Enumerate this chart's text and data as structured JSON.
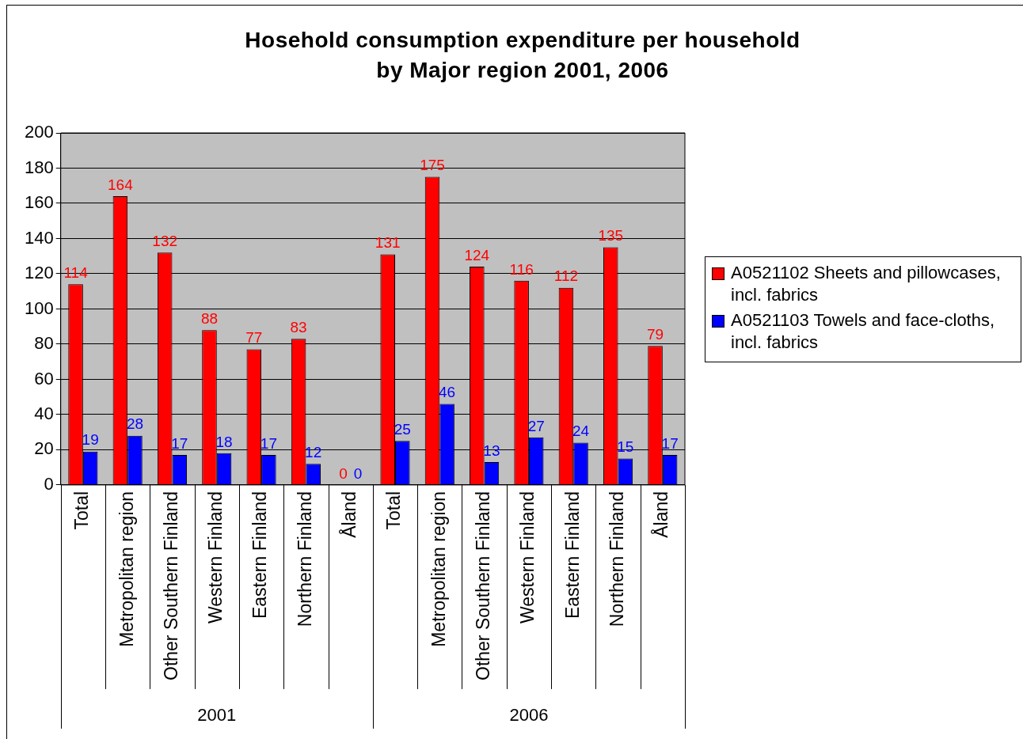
{
  "chart_data": {
    "type": "bar",
    "title": "Hosehold consumption expenditure per household by Major region 2001, 2006",
    "categories": [
      "Total",
      "Metropolitan region",
      "Other Southern Finland",
      "Western Finland",
      "Eastern Finland",
      "Northern Finland",
      "Åland",
      "Total",
      "Metropolitan region",
      "Other Southern Finland",
      "Western Finland",
      "Eastern Finland",
      "Northern Finland",
      "Åland"
    ],
    "series": [
      {
        "name": "A0521102  Sheets and pillowcases, incl. fabrics",
        "color": "#ff0000",
        "values": [
          114,
          164,
          132,
          88,
          77,
          83,
          0,
          131,
          175,
          124,
          116,
          112,
          135,
          79
        ]
      },
      {
        "name": "A0521103  Towels and face-cloths, incl. fabrics",
        "color": "#0000ff",
        "values": [
          19,
          28,
          17,
          18,
          17,
          12,
          0,
          25,
          46,
          13,
          27,
          24,
          15,
          17
        ]
      }
    ],
    "annotations": [
      "2001",
      "2006"
    ],
    "ylim": [
      0,
      200
    ],
    "yticks": [
      0,
      20,
      40,
      60,
      80,
      100,
      120,
      140,
      160,
      180,
      200
    ],
    "grid": "y",
    "legend": "right",
    "data_labels": true
  }
}
